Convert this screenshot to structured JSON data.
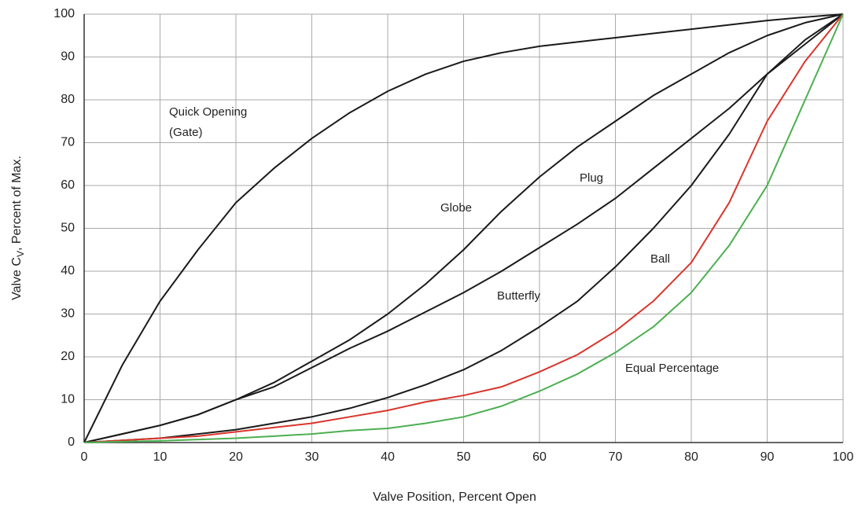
{
  "chart_data": {
    "type": "line",
    "x_label": "Valve Position, Percent Open",
    "y_label_parts": [
      "Valve C",
      "V",
      ", Percent of Max."
    ],
    "x": [
      0,
      5,
      10,
      15,
      20,
      25,
      30,
      35,
      40,
      45,
      50,
      55,
      60,
      65,
      70,
      75,
      80,
      85,
      90,
      95,
      100
    ],
    "series": [
      {
        "name": "Quick Opening (Gate)",
        "color": "#1a1a1a",
        "values": [
          0,
          18,
          33,
          45,
          56,
          64,
          71,
          77,
          82,
          86,
          89,
          91,
          92.5,
          93.5,
          94.5,
          95.5,
          96.5,
          97.5,
          98.5,
          99.3,
          100
        ]
      },
      {
        "name": "Globe",
        "color": "#1a1a1a",
        "values": [
          0,
          2,
          4,
          6.5,
          10,
          14,
          19,
          24,
          30,
          37,
          45,
          54,
          62,
          69,
          75,
          81,
          86,
          91,
          95,
          98,
          100
        ]
      },
      {
        "name": "Plug",
        "color": "#1a1a1a",
        "values": [
          0,
          2,
          4,
          6.5,
          10,
          13,
          17.5,
          22,
          26,
          30.5,
          35,
          40,
          45.5,
          51,
          57,
          64,
          71,
          78,
          86,
          93,
          100
        ]
      },
      {
        "name": "Butterfly",
        "color": "#1a1a1a",
        "values": [
          0,
          0.5,
          1,
          2,
          3,
          4.5,
          6,
          8,
          10.5,
          13.5,
          17,
          21.5,
          27,
          33,
          41,
          50,
          60,
          72,
          86,
          94,
          100
        ]
      },
      {
        "name": "Ball",
        "color": "#d9352b",
        "values": [
          0,
          0.5,
          1,
          1.5,
          2.5,
          3.5,
          4.5,
          6,
          7.5,
          9.5,
          11,
          13,
          16.5,
          20.5,
          26,
          33,
          42,
          56,
          75,
          89,
          100
        ]
      },
      {
        "name": "Equal Percentage",
        "color": "#4caf50",
        "values": [
          0,
          0.2,
          0.4,
          0.7,
          1,
          1.5,
          2,
          2.8,
          3.3,
          4.5,
          6,
          8.5,
          12,
          16,
          21,
          27,
          35,
          46,
          60,
          80,
          100
        ]
      }
    ],
    "xlim": [
      0,
      100
    ],
    "ylim": [
      0,
      100
    ],
    "xticks": [
      0,
      10,
      20,
      30,
      40,
      50,
      60,
      70,
      80,
      90,
      100
    ],
    "yticks": [
      0,
      10,
      20,
      30,
      40,
      50,
      60,
      70,
      80,
      90,
      100
    ],
    "grid": true
  }
}
